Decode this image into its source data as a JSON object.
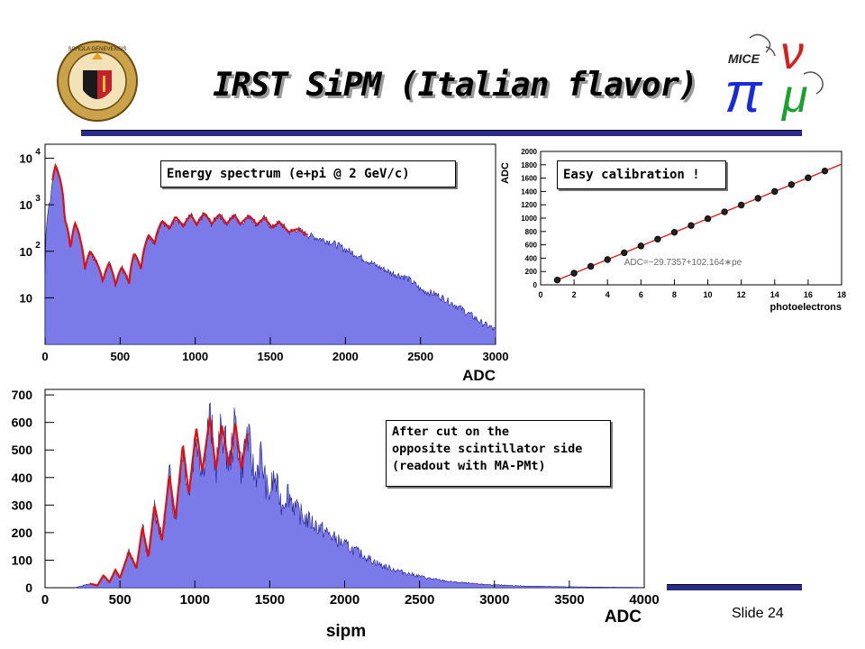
{
  "slide": {
    "title": "IRST SiPM (Italian flavor)",
    "slide_number": "Slide 24",
    "logo_left_text": "SCHOLA GENEVENSIS",
    "logo_right_text": "MICE"
  },
  "colors": {
    "fill": "#7a7ae8",
    "fit": "#dd1111",
    "edge": "#1a1a8a",
    "rule": "#2a2a8a"
  },
  "chart_data": [
    {
      "type": "area",
      "annotation": "Energy spectrum (e+pi @ 2 GeV/c)",
      "xlabel": "ADC",
      "ylabel": "",
      "log_y": true,
      "xlim": [
        0,
        3000
      ],
      "ylim": [
        1,
        20000
      ],
      "x_ticks": [
        "0",
        "500",
        "1000",
        "1500",
        "2000",
        "2500",
        "3000"
      ],
      "y_ticks": [
        {
          "base": "10",
          "exp": ""
        },
        {
          "base": "10",
          "exp": "2"
        },
        {
          "base": "10",
          "exp": "3"
        },
        {
          "base": "10",
          "exp": "4"
        }
      ],
      "x": [
        0,
        40,
        70,
        95,
        130,
        170,
        200,
        240,
        265,
        300,
        340,
        385,
        425,
        470,
        510,
        560,
        595,
        640,
        690,
        730,
        780,
        830,
        870,
        920,
        970,
        1010,
        1060,
        1110,
        1160,
        1210,
        1260,
        1300,
        1360,
        1410,
        1460,
        1510,
        1560,
        1620,
        1680,
        1740,
        1800,
        1900,
        2000,
        2100,
        2200,
        2300,
        2400,
        2500,
        2600,
        2700,
        2800,
        2900,
        3000
      ],
      "y": [
        30,
        1500,
        7000,
        4000,
        500,
        100,
        400,
        150,
        40,
        100,
        60,
        22,
        55,
        18,
        45,
        20,
        90,
        40,
        220,
        150,
        450,
        300,
        550,
        340,
        600,
        360,
        650,
        380,
        620,
        380,
        600,
        380,
        580,
        370,
        520,
        320,
        420,
        260,
        300,
        230,
        200,
        160,
        110,
        75,
        50,
        35,
        28,
        15,
        12,
        8,
        5,
        3,
        2
      ],
      "fit_range": [
        50,
        1750
      ]
    },
    {
      "type": "scatter",
      "annotation": "Easy calibration !",
      "xlabel": "photoelectrons",
      "ylabel": "ADC",
      "xlim": [
        0,
        18
      ],
      "ylim": [
        0,
        2000
      ],
      "x_ticks": [
        "0",
        "2",
        "4",
        "6",
        "8",
        "10",
        "12",
        "14",
        "16",
        "18"
      ],
      "y_ticks": [
        "0",
        "200",
        "400",
        "600",
        "800",
        "1000",
        "1200",
        "1400",
        "1600",
        "1800",
        "2000"
      ],
      "fit_label": "ADC=−29.7357+102.164∗pe",
      "fit": {
        "intercept": -29.7357,
        "slope": 102.164
      },
      "x": [
        1,
        2,
        3,
        4,
        5,
        6,
        7,
        8,
        9,
        10,
        11,
        12,
        13,
        14,
        15,
        16,
        17
      ],
      "y": [
        72,
        175,
        277,
        379,
        481,
        583,
        685,
        788,
        890,
        992,
        1094,
        1196,
        1298,
        1401,
        1503,
        1605,
        1707
      ]
    },
    {
      "type": "area",
      "annotation": "After cut on the opposite scintillator side (readout with MA-PMt)",
      "annotation_lines": [
        "After cut on the",
        "opposite scintillator side",
        "(readout with MA-PMt)"
      ],
      "title": "sipm",
      "xlabel": "ADC",
      "ylabel": "",
      "log_y": false,
      "xlim": [
        0,
        4000
      ],
      "ylim": [
        0,
        720
      ],
      "x_ticks": [
        "0",
        "500",
        "1000",
        "1500",
        "2000",
        "2500",
        "3000",
        "3500",
        "4000"
      ],
      "y_ticks": [
        "0",
        "100",
        "200",
        "300",
        "400",
        "500",
        "600",
        "700"
      ],
      "x": [
        200,
        300,
        350,
        390,
        430,
        470,
        500,
        560,
        610,
        650,
        690,
        730,
        780,
        830,
        870,
        920,
        960,
        1010,
        1050,
        1100,
        1140,
        1180,
        1230,
        1270,
        1310,
        1350,
        1400,
        1440,
        1490,
        1530,
        1580,
        1620,
        1680,
        1740,
        1800,
        1880,
        1960,
        2050,
        2150,
        2250,
        2400,
        2550,
        2700,
        2850,
        3000,
        3200,
        3400,
        3700,
        4000
      ],
      "y": [
        0,
        15,
        8,
        45,
        20,
        65,
        35,
        130,
        70,
        220,
        110,
        300,
        170,
        410,
        250,
        520,
        340,
        580,
        420,
        620,
        430,
        590,
        440,
        600,
        430,
        560,
        400,
        480,
        330,
        400,
        300,
        350,
        280,
        250,
        230,
        200,
        170,
        140,
        110,
        80,
        55,
        35,
        22,
        15,
        10,
        6,
        4,
        2,
        1
      ],
      "fit_range": [
        300,
        1350
      ]
    }
  ]
}
